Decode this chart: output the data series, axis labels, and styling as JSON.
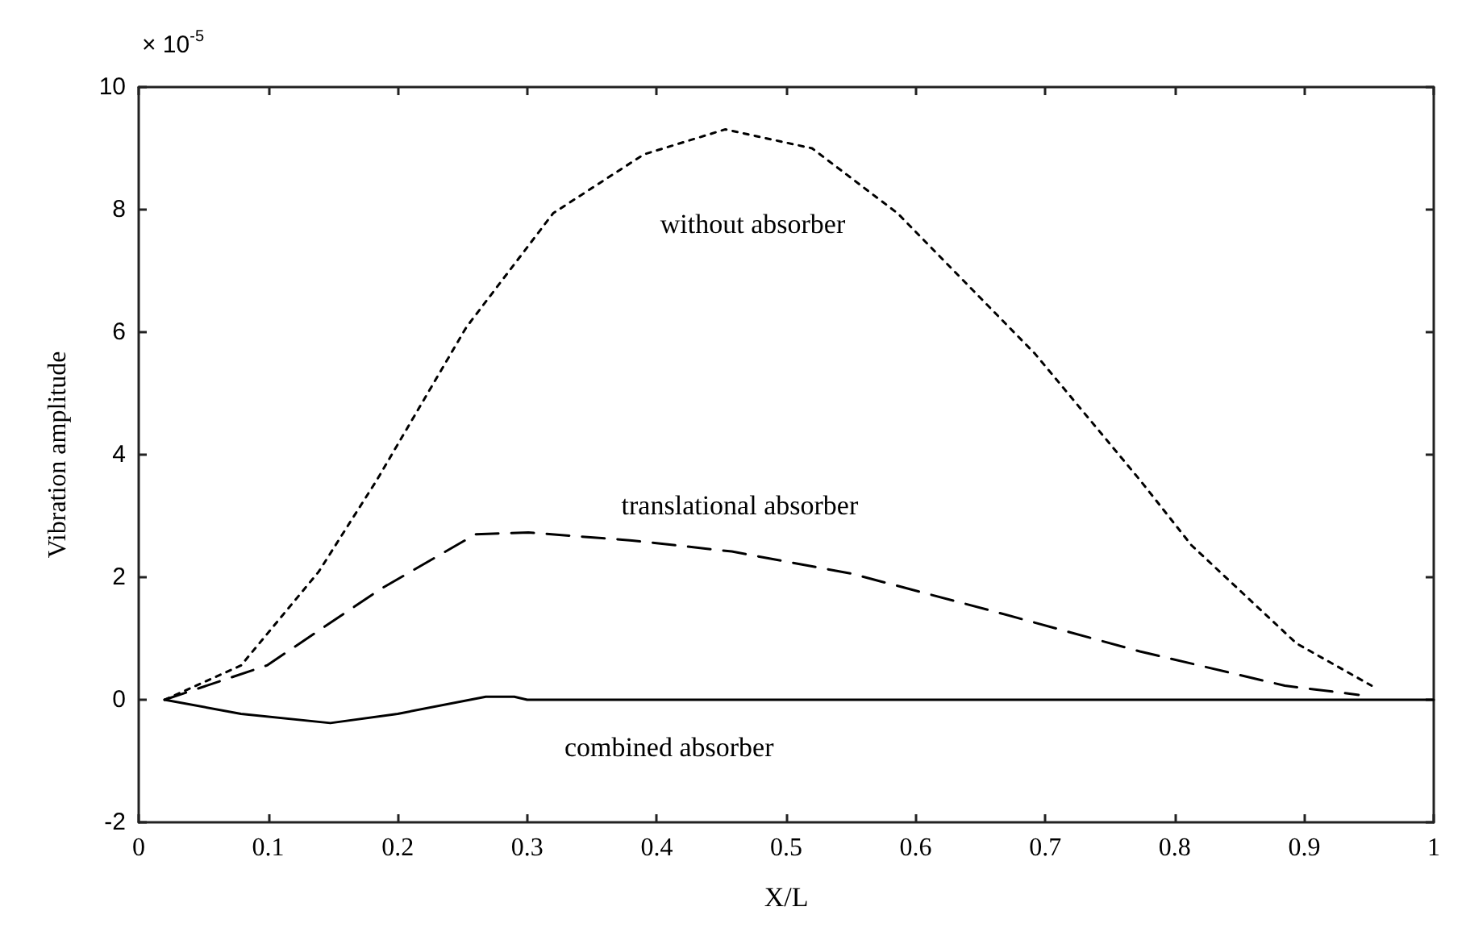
{
  "chart_data": {
    "type": "line",
    "xlabel": "X/L",
    "ylabel": "Vibration amplitude",
    "xlim": [
      0,
      1
    ],
    "xticks": [
      0,
      0.1,
      0.2,
      0.3,
      0.4,
      0.5,
      0.6,
      0.7,
      0.8,
      0.9,
      1
    ],
    "ylim": [
      -2,
      10
    ],
    "yticks": [
      -2,
      0,
      2,
      4,
      6,
      8,
      10
    ],
    "grid": false,
    "legend": false,
    "marker": "none",
    "series": [
      {
        "name": "without absorber",
        "color": "#000000",
        "line_style": "dotted",
        "x": [
          0.02,
          0.079,
          0.139,
          0.184,
          0.253,
          0.32,
          0.39,
          0.453,
          0.52,
          0.586,
          0.692,
          0.773,
          0.813,
          0.894,
          0.952
        ],
        "values": [
          0,
          0.56,
          2.09,
          3.59,
          6.08,
          7.94,
          8.9,
          9.31,
          9.0,
          7.94,
          5.65,
          3.59,
          2.52,
          0.92,
          0.23
        ]
      },
      {
        "name": "translational absorber",
        "color": "#000000",
        "line_style": "dashed",
        "x": [
          0.02,
          0.099,
          0.187,
          0.26,
          0.301,
          0.381,
          0.458,
          0.55,
          0.659,
          0.773,
          0.885,
          0.942
        ],
        "values": [
          0,
          0.56,
          1.81,
          2.7,
          2.73,
          2.6,
          2.42,
          2.06,
          1.45,
          0.79,
          0.23,
          0.08
        ]
      },
      {
        "name": "combined absorber",
        "color": "#000000",
        "line_style": "solid",
        "x": [
          0.02,
          0.079,
          0.148,
          0.2,
          0.268,
          0.29,
          0.3,
          1
        ],
        "values": [
          0,
          -0.23,
          -0.38,
          -0.23,
          0.05,
          0.05,
          0,
          0
        ]
      }
    ],
    "annotations": [
      "× 10$^{-5}$"
    ]
  }
}
